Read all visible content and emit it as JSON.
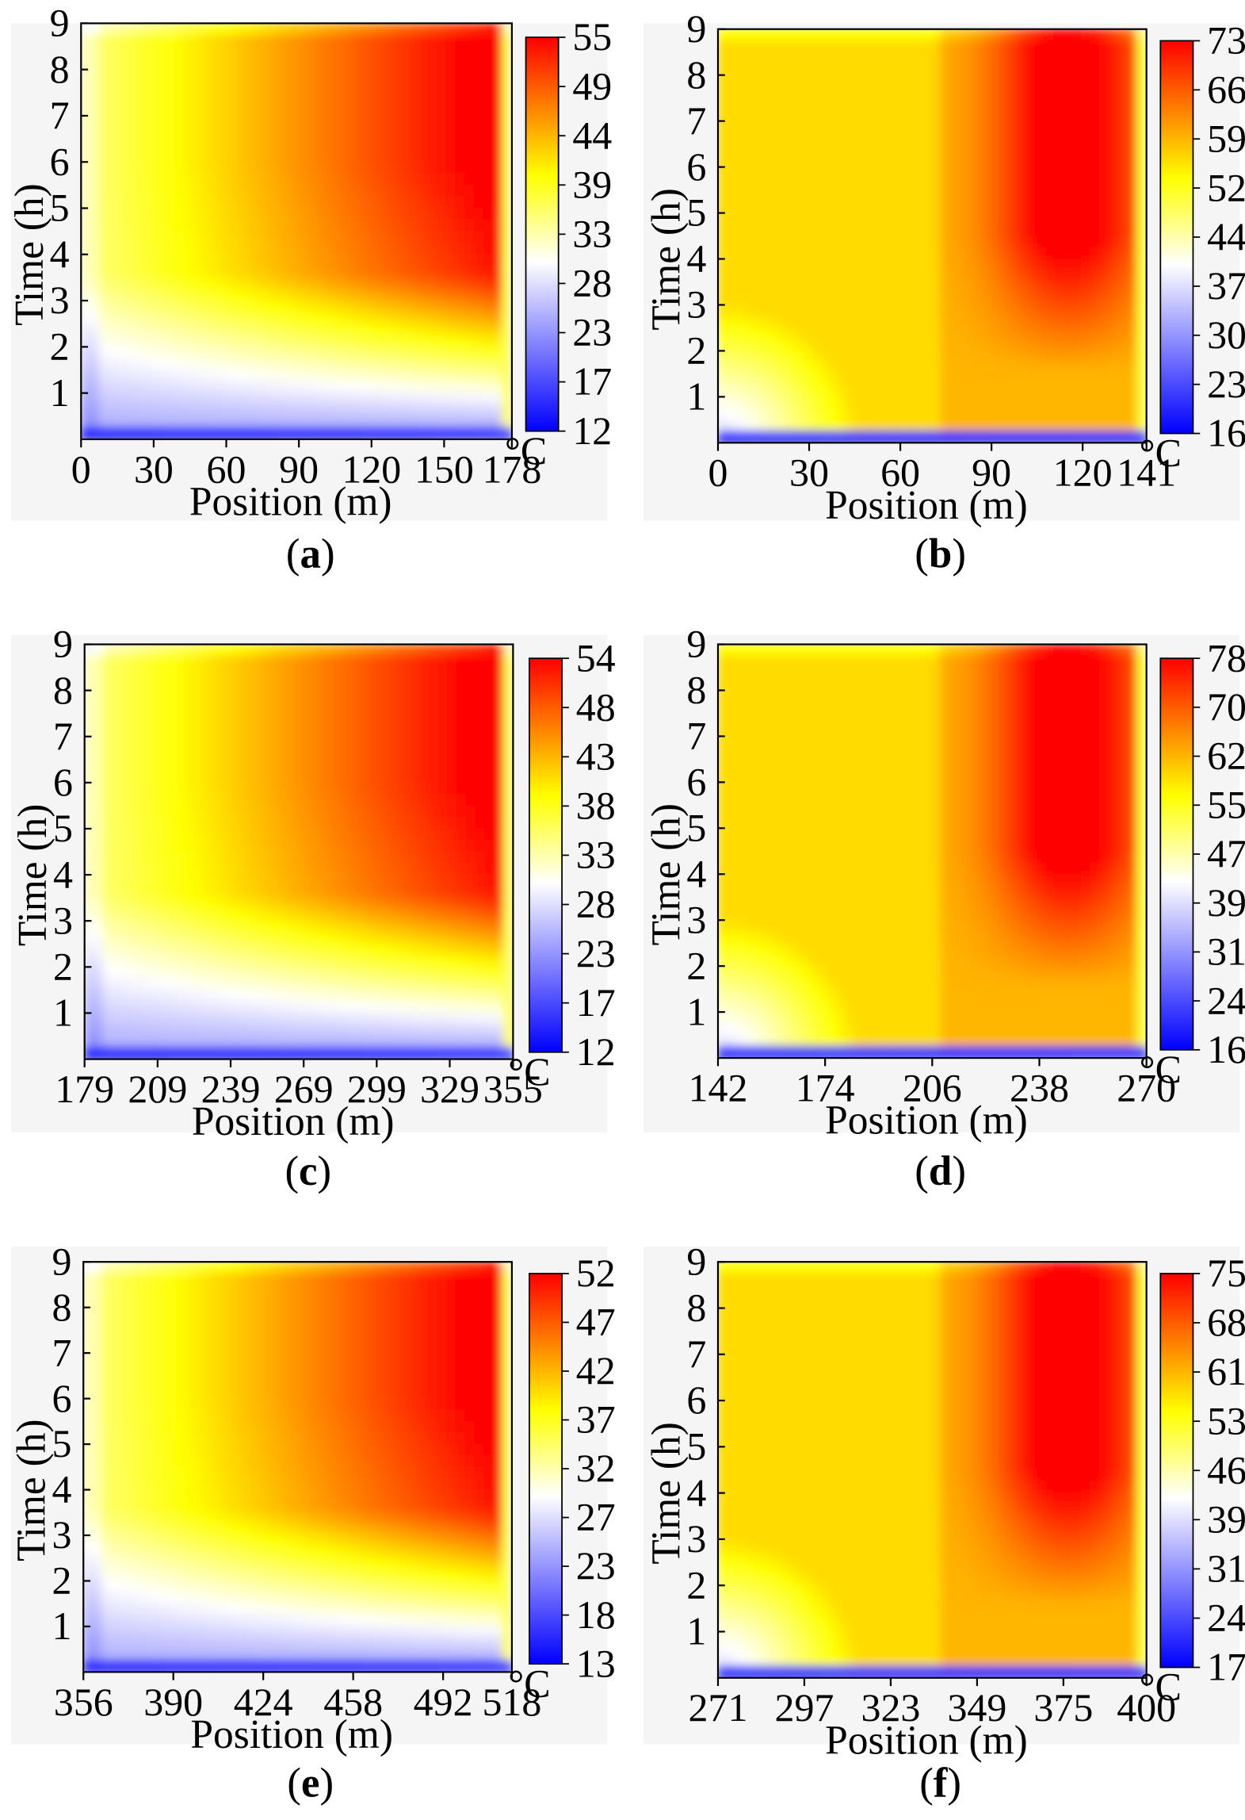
{
  "figure": {
    "colorscale": [
      "#0000ff",
      "#ffffff",
      "#ffff00",
      "#ff0000"
    ],
    "colorscale_stops": [
      0,
      0.43,
      0.65,
      1
    ]
  },
  "chart_data": [
    {
      "id": "a",
      "caption_letter": "a",
      "type": "heatmap",
      "xlabel": "Position (m)",
      "ylabel": "Time (h)",
      "xlim": [
        0,
        178
      ],
      "ylim": [
        0,
        9
      ],
      "xticks": [
        "0",
        "30",
        "60",
        "90",
        "120",
        "150",
        "178"
      ],
      "xtick_values": [
        0,
        30,
        60,
        90,
        120,
        150,
        178
      ],
      "yticks": [
        "1",
        "2",
        "3",
        "4",
        "5",
        "6",
        "7",
        "8",
        "9"
      ],
      "colorbar": {
        "unit": "°C",
        "ticks": [
          "55",
          "49",
          "44",
          "39",
          "33",
          "28",
          "23",
          "17",
          "12"
        ],
        "min": 12,
        "max": 55
      },
      "pattern": "odd"
    },
    {
      "id": "b",
      "caption_letter": "b",
      "type": "heatmap",
      "xlabel": "Position (m)",
      "ylabel": "Time (h)",
      "xlim": [
        0,
        141
      ],
      "ylim": [
        0,
        9
      ],
      "xticks": [
        "0",
        "30",
        "60",
        "90",
        "120",
        "141"
      ],
      "xtick_values": [
        0,
        30,
        60,
        90,
        120,
        141
      ],
      "yticks": [
        "1",
        "2",
        "3",
        "4",
        "5",
        "6",
        "7",
        "8",
        "9"
      ],
      "colorbar": {
        "unit": "°C",
        "ticks": [
          "73",
          "66",
          "59",
          "52",
          "44",
          "37",
          "30",
          "23",
          "16"
        ],
        "min": 16,
        "max": 73
      },
      "pattern": "even"
    },
    {
      "id": "c",
      "caption_letter": "c",
      "type": "heatmap",
      "xlabel": "Position (m)",
      "ylabel": "Time (h)",
      "xlim": [
        179,
        355
      ],
      "ylim": [
        0,
        9
      ],
      "xticks": [
        "179",
        "209",
        "239",
        "269",
        "299",
        "329",
        "355"
      ],
      "xtick_values": [
        179,
        209,
        239,
        269,
        299,
        329,
        355
      ],
      "yticks": [
        "1",
        "2",
        "3",
        "4",
        "5",
        "6",
        "7",
        "8",
        "9"
      ],
      "colorbar": {
        "unit": "°C",
        "ticks": [
          "54",
          "48",
          "43",
          "38",
          "33",
          "28",
          "23",
          "17",
          "12"
        ],
        "min": 12,
        "max": 54
      },
      "pattern": "odd"
    },
    {
      "id": "d",
      "caption_letter": "d",
      "type": "heatmap",
      "xlabel": "Position (m)",
      "ylabel": "Time (h)",
      "xlim": [
        142,
        270
      ],
      "ylim": [
        0,
        9
      ],
      "xticks": [
        "142",
        "174",
        "206",
        "238",
        "270"
      ],
      "xtick_values": [
        142,
        174,
        206,
        238,
        270
      ],
      "yticks": [
        "1",
        "2",
        "3",
        "4",
        "5",
        "6",
        "7",
        "8",
        "9"
      ],
      "colorbar": {
        "unit": "°C",
        "ticks": [
          "78",
          "70",
          "62",
          "55",
          "47",
          "39",
          "31",
          "24",
          "16"
        ],
        "min": 16,
        "max": 78
      },
      "pattern": "even"
    },
    {
      "id": "e",
      "caption_letter": "e",
      "type": "heatmap",
      "xlabel": "Position (m)",
      "ylabel": "Time (h)",
      "xlim": [
        356,
        518
      ],
      "ylim": [
        0,
        9
      ],
      "xticks": [
        "356",
        "390",
        "424",
        "458",
        "492",
        "518"
      ],
      "xtick_values": [
        356,
        390,
        424,
        458,
        492,
        518
      ],
      "yticks": [
        "1",
        "2",
        "3",
        "4",
        "5",
        "6",
        "7",
        "8",
        "9"
      ],
      "colorbar": {
        "unit": "°C",
        "ticks": [
          "52",
          "47",
          "42",
          "37",
          "32",
          "27",
          "23",
          "18",
          "13"
        ],
        "min": 13,
        "max": 52
      },
      "pattern": "odd"
    },
    {
      "id": "f",
      "caption_letter": "f",
      "type": "heatmap",
      "xlabel": "Position (m)",
      "ylabel": "Time (h)",
      "xlim": [
        271,
        400
      ],
      "ylim": [
        0,
        9
      ],
      "xticks": [
        "271",
        "297",
        "323",
        "349",
        "375",
        "400"
      ],
      "xtick_values": [
        271,
        297,
        323,
        349,
        375,
        400
      ],
      "yticks": [
        "1",
        "2",
        "3",
        "4",
        "5",
        "6",
        "7",
        "8",
        "9"
      ],
      "colorbar": {
        "unit": "°C",
        "ticks": [
          "75",
          "68",
          "61",
          "53",
          "46",
          "39",
          "31",
          "24",
          "17"
        ],
        "min": 17,
        "max": 75
      },
      "pattern": "even"
    }
  ]
}
